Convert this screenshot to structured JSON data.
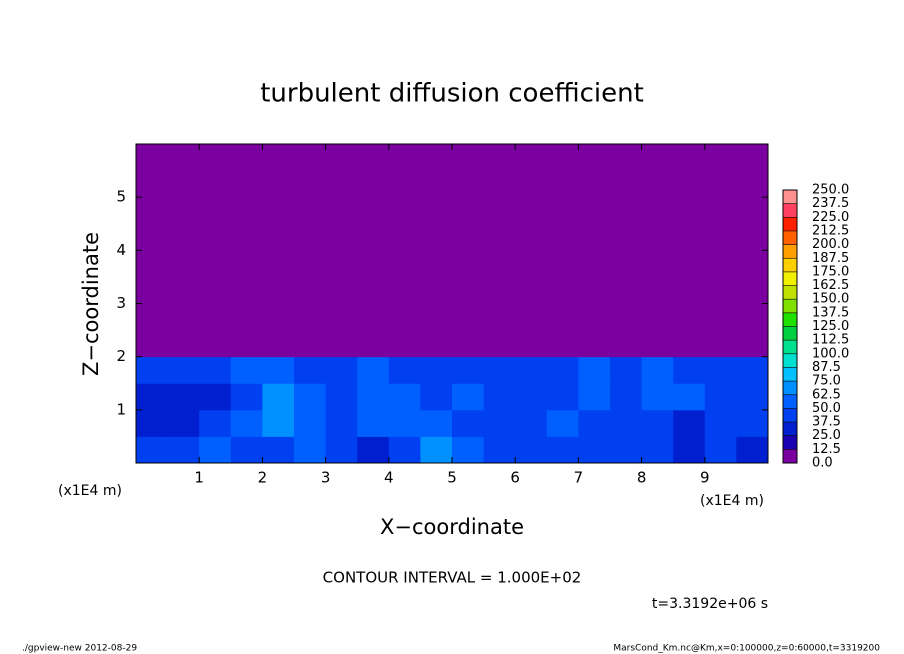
{
  "chart_data": {
    "type": "contour",
    "title": "turbulent diffusion coefficient",
    "xlabel": "X−coordinate",
    "ylabel": "Z−coordinate",
    "xunit": "(x1E4 m)",
    "yunit": "(x1E4 m)",
    "xlim": [
      0,
      10
    ],
    "ylim": [
      0,
      6
    ],
    "xticks": [
      1,
      2,
      3,
      4,
      5,
      6,
      7,
      8,
      9
    ],
    "yticks": [
      1,
      2,
      3,
      4,
      5
    ],
    "z": [
      [
        40,
        45,
        50,
        40,
        45,
        60,
        40,
        35,
        45,
        70,
        55,
        45,
        40,
        45,
        40,
        40,
        45,
        35,
        40,
        35
      ],
      [
        30,
        35,
        40,
        50,
        65,
        55,
        40,
        50,
        55,
        60,
        45,
        40,
        45,
        50,
        45,
        40,
        40,
        35,
        45,
        40
      ],
      [
        35,
        30,
        35,
        45,
        70,
        50,
        45,
        55,
        50,
        45,
        50,
        45,
        40,
        45,
        55,
        45,
        55,
        50,
        45,
        40
      ],
      [
        40,
        40,
        45,
        50,
        60,
        40,
        45,
        50,
        45,
        40,
        45,
        40,
        45,
        40,
        50,
        45,
        50,
        45,
        40,
        40
      ],
      [
        0,
        0,
        0,
        0,
        0,
        0,
        0,
        0,
        0,
        0,
        0,
        0,
        0,
        0,
        0,
        0,
        0,
        0,
        0,
        0
      ],
      [
        0,
        0,
        0,
        0,
        0,
        0,
        0,
        0,
        0,
        0,
        0,
        0,
        0,
        0,
        0,
        0,
        0,
        0,
        0,
        0
      ],
      [
        0,
        0,
        0,
        0,
        0,
        0,
        0,
        0,
        0,
        0,
        0,
        0,
        0,
        0,
        0,
        0,
        0,
        0,
        0,
        0
      ],
      [
        0,
        0,
        0,
        0,
        0,
        0,
        0,
        0,
        0,
        0,
        0,
        0,
        0,
        0,
        0,
        0,
        0,
        0,
        0,
        0
      ],
      [
        0,
        0,
        0,
        0,
        0,
        0,
        0,
        0,
        0,
        0,
        0,
        0,
        0,
        0,
        0,
        0,
        0,
        0,
        0,
        0
      ],
      [
        0,
        0,
        0,
        0,
        0,
        0,
        0,
        0,
        0,
        0,
        0,
        0,
        0,
        0,
        0,
        0,
        0,
        0,
        0,
        0
      ],
      [
        0,
        0,
        0,
        0,
        0,
        0,
        0,
        0,
        0,
        0,
        0,
        0,
        0,
        0,
        0,
        0,
        0,
        0,
        0,
        0
      ],
      [
        0,
        0,
        0,
        0,
        0,
        0,
        0,
        0,
        0,
        0,
        0,
        0,
        0,
        0,
        0,
        0,
        0,
        0,
        0,
        0
      ]
    ],
    "levels": [
      {
        "value": 0,
        "label": "0.0"
      },
      12.5,
      {
        "value": 25,
        "label": "25.0"
      },
      37.5,
      {
        "value": 50,
        "label": "50.0"
      },
      62.5,
      {
        "value": 75,
        "label": "75.0"
      },
      87.5,
      {
        "value": 100,
        "label": "100.0"
      },
      112.5,
      {
        "value": 125,
        "label": "125.0"
      },
      137.5,
      {
        "value": 150,
        "label": "150.0"
      },
      162.5,
      {
        "value": 175,
        "label": "175.0"
      },
      187.5,
      {
        "value": 200,
        "label": "200.0"
      },
      212.5,
      {
        "value": 225,
        "label": "225.0"
      },
      237.5,
      {
        "value": 250,
        "label": "250.0"
      }
    ],
    "colors": [
      "#7b00a0",
      "#1a00b0",
      "#0020d0",
      "#0040f0",
      "#0060ff",
      "#0090ff",
      "#00c0ff",
      "#00e0d0",
      "#00e090",
      "#00d040",
      "#20e000",
      "#80e000",
      "#c0e000",
      "#f0f000",
      "#ffd000",
      "#ffa000",
      "#ff6000",
      "#ff2000",
      "#ff4060",
      "#ff9090"
    ],
    "contour_interval": "CONTOUR INTERVAL = 1.000E+02",
    "time": "t=3.3192e+06 s",
    "footer_left": "./gpview-new  2012-08-29",
    "footer_right": "MarsCond_Km.nc@Km,x=0:100000,z=0:60000,t=3319200"
  }
}
